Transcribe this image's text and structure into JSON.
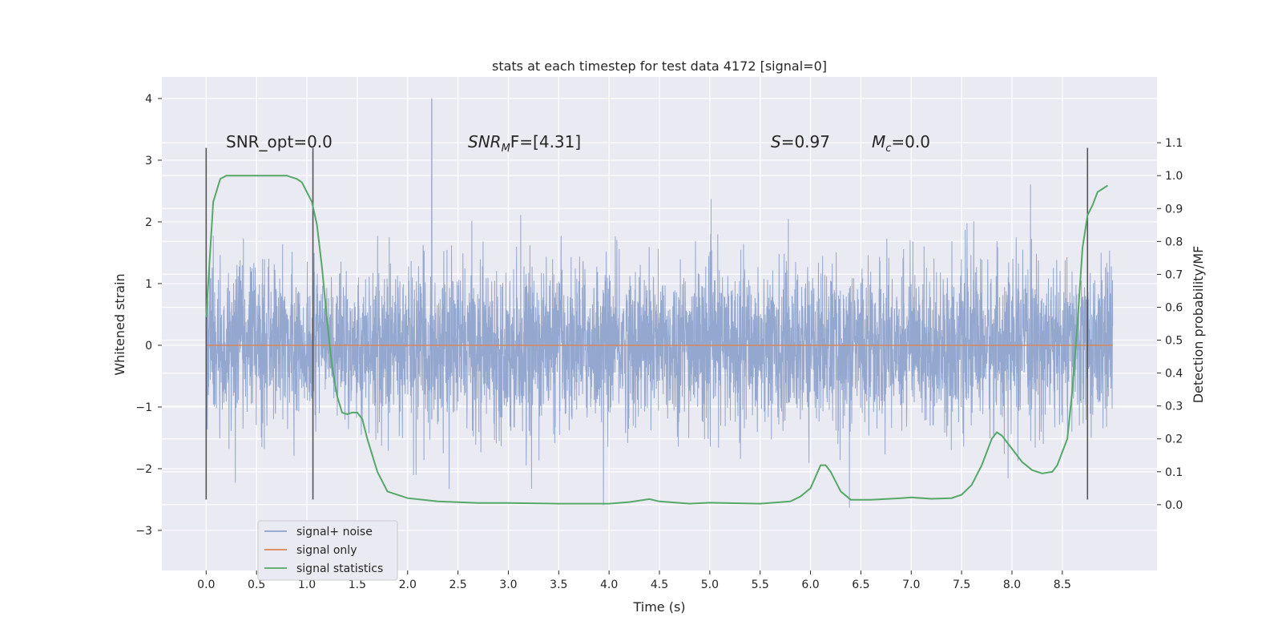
{
  "chart_data": {
    "type": "line",
    "title": "stats at each timestep for test data 4172 [signal=0]",
    "xlabel": "Time (s)",
    "ylabel_left": "Whitened strain",
    "ylabel_right": "Detection probability/MF",
    "xlim": [
      -0.44,
      9.44
    ],
    "ylim_left": [
      -3.65,
      4.35
    ],
    "ylim_right": [
      -0.2,
      1.3
    ],
    "x_ticks": [
      0.0,
      0.5,
      1.0,
      1.5,
      2.0,
      2.5,
      3.0,
      3.5,
      4.0,
      4.5,
      5.0,
      5.5,
      6.0,
      6.5,
      7.0,
      7.5,
      8.0,
      8.5
    ],
    "x_tick_labels": [
      "0.0",
      "0.5",
      "1.0",
      "1.5",
      "2.0",
      "2.5",
      "3.0",
      "3.5",
      "4.0",
      "4.5",
      "5.0",
      "5.5",
      "6.0",
      "6.5",
      "7.0",
      "7.5",
      "8.0",
      "8.5"
    ],
    "y_left_ticks": [
      4,
      3,
      2,
      1,
      0,
      -1,
      -2,
      -3
    ],
    "y_left_tick_labels": [
      "4",
      "3",
      "2",
      "1",
      "0",
      "−1",
      "−2",
      "−3"
    ],
    "y_right_ticks": [
      1.1,
      1.0,
      0.9,
      0.8,
      0.7,
      0.6,
      0.5,
      0.4,
      0.3,
      0.2,
      0.1,
      0.0
    ],
    "y_right_tick_labels": [
      "1.1",
      "1.0",
      "0.9",
      "0.8",
      "0.7",
      "0.6",
      "0.5",
      "0.4",
      "0.3",
      "0.2",
      "0.1",
      "0.0"
    ],
    "grid": true,
    "legend_position": "lower-left",
    "annotations": {
      "snr_opt": "SNR_opt=0.0",
      "snr_mf_main": "SNR",
      "snr_mf_sub": "M",
      "snr_mf_rest": "F=[4.31]",
      "s_main": "S",
      "s_rest": "=0.97",
      "mc_main": "M",
      "mc_sub": "c",
      "mc_rest": "=0.0"
    },
    "series": [
      {
        "name": "signal+ noise",
        "color": "#8fa3cc",
        "x_range": [
          0.0,
          9.0
        ],
        "y_range": [
          -3.3,
          4.0
        ],
        "note_values": "dense noise trace, mostly within about ±1.5, spikes near 4.0 at t≈2.24"
      },
      {
        "name": "signal only",
        "color": "#dd8452",
        "x": [
          0.0,
          9.0
        ],
        "y": [
          0.0,
          0.0
        ]
      },
      {
        "name": "signal statistics",
        "color": "#55a868",
        "axis": "right",
        "x": [
          0.0,
          0.07,
          0.14,
          0.2,
          0.3,
          0.5,
          0.7,
          0.8,
          0.9,
          0.95,
          1.0,
          1.05,
          1.1,
          1.15,
          1.2,
          1.25,
          1.3,
          1.35,
          1.4,
          1.45,
          1.5,
          1.55,
          1.6,
          1.7,
          1.8,
          2.0,
          2.3,
          2.7,
          3.0,
          3.5,
          4.0,
          4.2,
          4.4,
          4.5,
          4.8,
          5.0,
          5.5,
          5.8,
          5.9,
          6.0,
          6.1,
          6.15,
          6.2,
          6.3,
          6.4,
          6.6,
          6.9,
          7.0,
          7.2,
          7.4,
          7.5,
          7.6,
          7.7,
          7.8,
          7.85,
          7.9,
          8.0,
          8.1,
          8.2,
          8.3,
          8.4,
          8.45,
          8.55,
          8.6,
          8.65,
          8.7,
          8.75,
          8.8,
          8.85,
          8.9,
          8.95
        ],
        "y": [
          0.57,
          0.92,
          0.99,
          1.0,
          1.0,
          1.0,
          1.0,
          1.0,
          0.99,
          0.98,
          0.95,
          0.92,
          0.85,
          0.72,
          0.56,
          0.42,
          0.33,
          0.28,
          0.275,
          0.28,
          0.28,
          0.26,
          0.2,
          0.1,
          0.04,
          0.02,
          0.01,
          0.005,
          0.005,
          0.003,
          0.003,
          0.008,
          0.017,
          0.01,
          0.003,
          0.006,
          0.003,
          0.01,
          0.025,
          0.05,
          0.12,
          0.12,
          0.1,
          0.04,
          0.015,
          0.015,
          0.02,
          0.022,
          0.018,
          0.02,
          0.03,
          0.06,
          0.12,
          0.2,
          0.22,
          0.21,
          0.17,
          0.13,
          0.105,
          0.095,
          0.1,
          0.12,
          0.2,
          0.35,
          0.55,
          0.78,
          0.88,
          0.91,
          0.95,
          0.96,
          0.97
        ]
      }
    ],
    "vertical_lines": [
      {
        "x": 0.0,
        "y_range": [
          -2.5,
          3.2
        ]
      },
      {
        "x": 1.06,
        "y_range": [
          -2.5,
          3.2
        ]
      },
      {
        "x": 8.75,
        "y_range": [
          -2.5,
          3.2
        ]
      }
    ]
  }
}
